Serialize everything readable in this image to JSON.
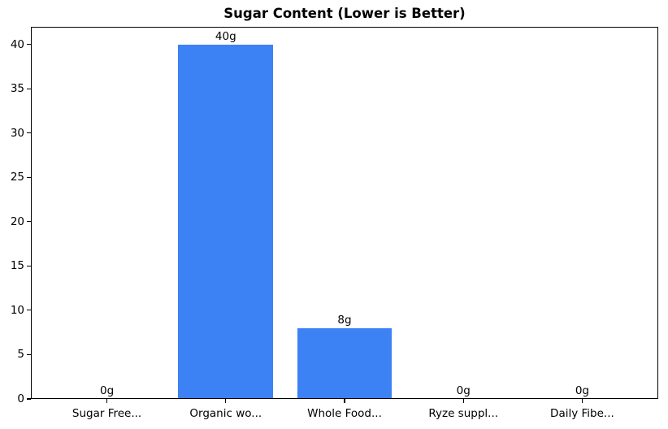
{
  "chart_data": {
    "type": "bar",
    "title": "Sugar Content (Lower is Better)",
    "categories": [
      "Sugar Free...",
      "Organic wo...",
      "Whole Food...",
      "Ryze suppl...",
      "Daily Fibe..."
    ],
    "values": [
      0,
      40,
      8,
      0,
      0
    ],
    "bar_labels": [
      "0g",
      "40g",
      "8g",
      "0g",
      "0g"
    ],
    "yticks": [
      0,
      5,
      10,
      15,
      20,
      25,
      30,
      35,
      40
    ],
    "ylim": [
      0,
      42
    ],
    "xlabel": "",
    "ylabel": "",
    "grid": false,
    "legend": "none",
    "bar_color": "#3c82f5",
    "axis_color": "#000000",
    "background_color": "#ffffff"
  }
}
